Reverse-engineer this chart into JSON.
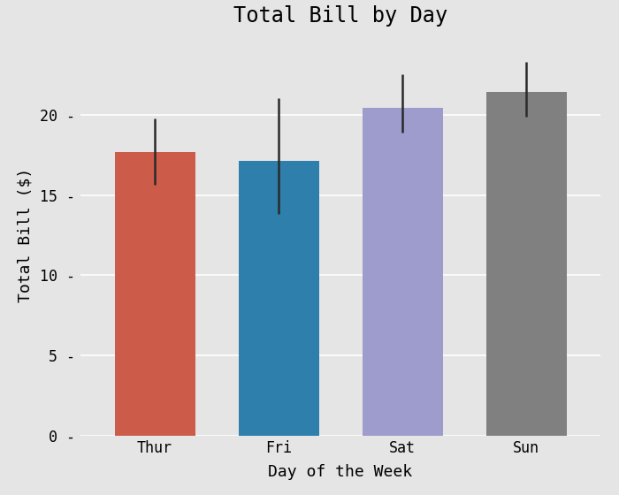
{
  "categories": [
    "Thur",
    "Fri",
    "Sat",
    "Sun"
  ],
  "values": [
    17.68,
    17.15,
    20.44,
    21.41
  ],
  "yerr_upper": [
    2.12,
    3.88,
    2.09,
    1.87
  ],
  "yerr_lower": [
    2.02,
    3.3,
    1.56,
    1.53
  ],
  "bar_colors": [
    "#cd5b49",
    "#2e7fac",
    "#9e9bcd",
    "#808080"
  ],
  "title": "Total Bill by Day",
  "xlabel": "Day of the Week",
  "ylabel": "Total Bill ($)",
  "ylim": [
    0,
    25
  ],
  "yticks": [
    0,
    5,
    10,
    15,
    20
  ],
  "background_color": "#e5e5e5",
  "plot_bg_color": "#e5e5e5",
  "grid_color": "#ffffff",
  "title_fontsize": 17,
  "label_fontsize": 13,
  "tick_fontsize": 12
}
